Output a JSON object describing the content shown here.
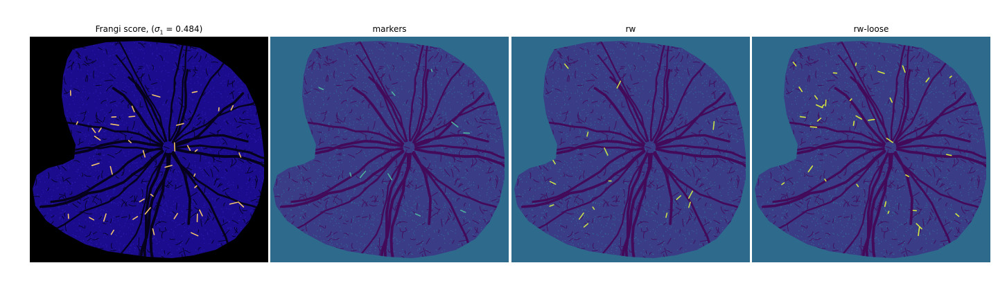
{
  "figure": {
    "panels": [
      {
        "id": "frangi",
        "title_prefix": "Frangi score, (",
        "title_sigma": "σ",
        "title_sub": "1",
        "title_suffix": " = 0.484)",
        "background": "#000000",
        "fill": "#1a0c8c",
        "texture": "#3a2bd0",
        "vessel": "#06021c",
        "highlight": "#f4c56a"
      },
      {
        "id": "markers",
        "title": "markers",
        "background": "#2d6a8c",
        "fill": "#3a3c86",
        "texture": "#2f8aa0",
        "vessel": "#440a5a",
        "highlight": "#4fb3a0"
      },
      {
        "id": "rw",
        "title": "rw",
        "background": "#2d6a8c",
        "fill": "#3a3c86",
        "texture": "#2f8aa0",
        "vessel": "#440a5a",
        "highlight": "#c8e04a"
      },
      {
        "id": "rw-loose",
        "title": "rw-loose",
        "background": "#2d6a8c",
        "fill": "#3a3c86",
        "texture": "#2f8aa0",
        "vessel": "#440a5a",
        "highlight": "#d8ea3c"
      }
    ]
  }
}
